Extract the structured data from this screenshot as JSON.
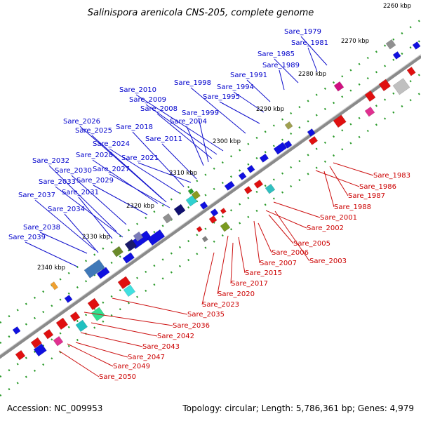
{
  "title": "Salinispora arenicola CNS-205, complete genome",
  "footer": {
    "accession": "Accession: NC_009953",
    "summary": "Topology: circular; Length: 5,786,361 bp; Genes: 4,979"
  },
  "colors": {
    "backbone": "#808080",
    "forward_gene": "#1010e0",
    "reverse_gene": "#e01010",
    "forward_label": "#0000cc",
    "reverse_label": "#cc0000",
    "tick_dots": "#2a9a2a"
  },
  "kbp_markers": [
    "2260 kbp",
    "2270 kbp",
    "2280 kbp",
    "2290 kbp",
    "2300 kbp",
    "2310 kbp",
    "2320 kbp",
    "2330 kbp",
    "2340 kbp"
  ],
  "forward_labels": [
    "Sare_1979",
    "Sare_1981",
    "Sare_1985",
    "Sare_1989",
    "Sare_1991",
    "Sare_1994",
    "Sare_1995",
    "Sare_1998",
    "Sare_2010",
    "Sare_2009",
    "Sare_2008",
    "Sare_1999",
    "Sare_2004",
    "Sare_2026",
    "Sare_2025",
    "Sare_2018",
    "Sare_2011",
    "Sare_2024",
    "Sare_2021",
    "Sare_2028",
    "Sare_2032",
    "Sare_2027",
    "Sare_2030",
    "Sare_2029",
    "Sare_2033",
    "Sare_2031",
    "Sare_2037",
    "Sare_2034",
    "Sare_2038",
    "Sare_2039"
  ],
  "reverse_labels": [
    "Sare_1983",
    "Sare_1986",
    "Sare_1987",
    "Sare_1988",
    "Sare_2001",
    "Sare_2002",
    "Sare_2005",
    "Sare_2006",
    "Sare_2003",
    "Sare_2007",
    "Sare_2015",
    "Sare_2017",
    "Sare_2020",
    "Sare_2023",
    "Sare_2035",
    "Sare_2036",
    "Sare_2042",
    "Sare_2043",
    "Sare_2047",
    "Sare_2049",
    "Sare_2050"
  ]
}
